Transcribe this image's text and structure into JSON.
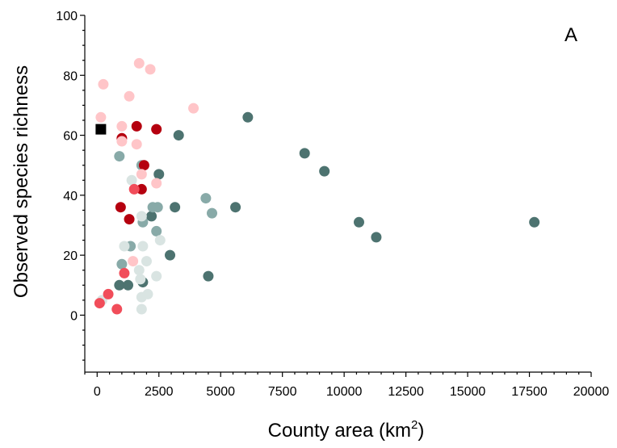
{
  "chart_data": {
    "type": "scatter",
    "panel_label": "A",
    "xlabel": "County area (km",
    "xlabel_sup": "2",
    "xlabel_suffix": ")",
    "ylabel": "Observed species richness",
    "xlim": [
      -500,
      20000
    ],
    "ylim": [
      -19,
      100
    ],
    "x_ticks": [
      0,
      2500,
      5000,
      7500,
      10000,
      12500,
      15000,
      17500,
      20000
    ],
    "y_ticks": [
      0,
      20,
      40,
      60,
      80,
      100
    ],
    "x_minor_step": 500,
    "y_minor_step": 5,
    "grid": false,
    "colors": {
      "dark_slate": "#4d7370",
      "mid_slate": "#88aaa8",
      "light_slate": "#d9e4e2",
      "dark_red": "#b5000f",
      "red": "#f14d5a",
      "pink": "#ffc5c8",
      "black": "#000000"
    },
    "series": [
      {
        "color": "dark_slate",
        "points": [
          [
            6100,
            66
          ],
          [
            3300,
            60
          ],
          [
            8400,
            54
          ],
          [
            9200,
            48
          ],
          [
            2500,
            47
          ],
          [
            5600,
            36
          ],
          [
            3150,
            36
          ],
          [
            10600,
            31
          ],
          [
            17700,
            31
          ],
          [
            11300,
            26
          ],
          [
            2200,
            33
          ],
          [
            2950,
            20
          ],
          [
            4500,
            13
          ],
          [
            1850,
            11
          ],
          [
            900,
            10
          ],
          [
            1250,
            10
          ]
        ]
      },
      {
        "color": "mid_slate",
        "points": [
          [
            900,
            53
          ],
          [
            1800,
            50
          ],
          [
            4400,
            39
          ],
          [
            4650,
            34
          ],
          [
            2450,
            36
          ],
          [
            2250,
            36
          ],
          [
            1850,
            31
          ],
          [
            2400,
            28
          ],
          [
            1350,
            23
          ],
          [
            1000,
            17
          ]
        ]
      },
      {
        "color": "light_slate",
        "points": [
          [
            1400,
            45
          ],
          [
            1800,
            33
          ],
          [
            2550,
            25
          ],
          [
            1100,
            23
          ],
          [
            1850,
            23
          ],
          [
            2000,
            18
          ],
          [
            1700,
            15
          ],
          [
            1750,
            12
          ],
          [
            2400,
            13
          ],
          [
            1800,
            6
          ],
          [
            2050,
            7
          ],
          [
            1800,
            2
          ],
          [
            200,
            5
          ]
        ]
      },
      {
        "color": "dark_red",
        "points": [
          [
            1600,
            63
          ],
          [
            2400,
            62
          ],
          [
            1000,
            59
          ],
          [
            1900,
            50
          ],
          [
            1800,
            42
          ],
          [
            950,
            36
          ],
          [
            1300,
            32
          ]
        ]
      },
      {
        "color": "red",
        "points": [
          [
            1500,
            42
          ],
          [
            1100,
            14
          ],
          [
            100,
            4
          ],
          [
            450,
            7
          ],
          [
            800,
            2
          ]
        ]
      },
      {
        "color": "pink",
        "points": [
          [
            1700,
            84
          ],
          [
            2150,
            82
          ],
          [
            250,
            77
          ],
          [
            1300,
            73
          ],
          [
            3900,
            69
          ],
          [
            150,
            66
          ],
          [
            1000,
            63
          ],
          [
            1000,
            58
          ],
          [
            1600,
            57
          ],
          [
            1800,
            47
          ],
          [
            2400,
            44
          ],
          [
            1450,
            18
          ]
        ]
      },
      {
        "color": "black",
        "marker": "square",
        "points": [
          [
            150,
            62
          ]
        ]
      }
    ]
  }
}
